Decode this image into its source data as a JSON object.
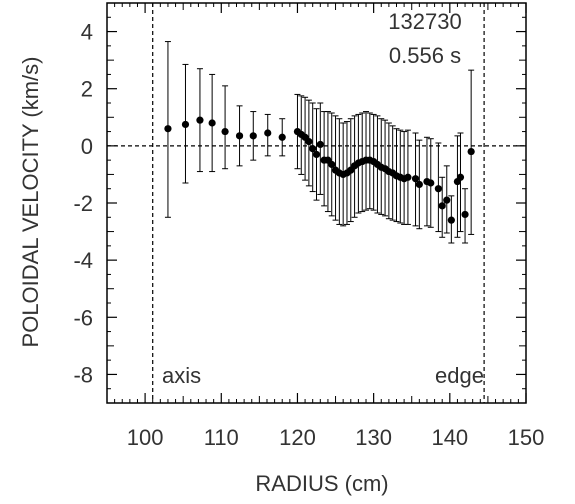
{
  "chart_data": {
    "type": "scatter",
    "title": "",
    "xlabel": "RADIUS (cm)",
    "ylabel": "POLOIDAL VELOCITY (km/s)",
    "xlim": [
      95,
      150
    ],
    "ylim": [
      -9,
      5
    ],
    "xticks": [
      100,
      110,
      120,
      130,
      140,
      150
    ],
    "yticks": [
      4,
      2,
      0,
      -2,
      -4,
      -6,
      -8
    ],
    "xtick_labels": [
      "100",
      "110",
      "120",
      "130",
      "140",
      "150"
    ],
    "ytick_labels": [
      "4",
      "2",
      "0",
      "-2",
      "-4",
      "-6",
      "-8"
    ],
    "grid": false,
    "reference_lines": {
      "horizontal_y": 0,
      "vertical_x": [
        101,
        144.5
      ],
      "style": "dashed"
    },
    "annotations": {
      "shot": "132730",
      "time": "0.556 s",
      "axis": "axis",
      "edge": "edge"
    },
    "series": [
      {
        "marker": "filled-circle",
        "color": "#000000",
        "points": [
          {
            "x": 103.0,
            "y": 0.6,
            "lo": -2.5,
            "hi": 3.65
          },
          {
            "x": 105.3,
            "y": 0.75,
            "lo": -1.3,
            "hi": 2.85
          },
          {
            "x": 107.2,
            "y": 0.9,
            "lo": -0.9,
            "hi": 2.7
          },
          {
            "x": 108.8,
            "y": 0.8,
            "lo": -0.9,
            "hi": 2.5
          },
          {
            "x": 110.5,
            "y": 0.5,
            "lo": -0.8,
            "hi": 2.1
          },
          {
            "x": 112.4,
            "y": 0.35,
            "lo": -0.7,
            "hi": 1.4
          },
          {
            "x": 114.2,
            "y": 0.35,
            "lo": -0.5,
            "hi": 1.2
          },
          {
            "x": 116.1,
            "y": 0.45,
            "lo": -0.35,
            "hi": 1.1
          },
          {
            "x": 118.0,
            "y": 0.3,
            "lo": -0.35,
            "hi": 0.95
          },
          {
            "x": 120.0,
            "y": 0.5,
            "lo": -0.8,
            "hi": 1.8
          },
          {
            "x": 120.5,
            "y": 0.4,
            "lo": -1.0,
            "hi": 1.75
          },
          {
            "x": 121.0,
            "y": 0.3,
            "lo": -1.2,
            "hi": 1.7
          },
          {
            "x": 121.5,
            "y": 0.15,
            "lo": -1.4,
            "hi": 1.6
          },
          {
            "x": 122.0,
            "y": -0.1,
            "lo": -1.6,
            "hi": 1.5
          },
          {
            "x": 122.5,
            "y": -0.3,
            "lo": -1.9,
            "hi": 1.3
          },
          {
            "x": 123.0,
            "y": 0.05,
            "lo": -1.7,
            "hi": 1.5
          },
          {
            "x": 123.5,
            "y": -0.5,
            "lo": -2.1,
            "hi": 1.2
          },
          {
            "x": 124.0,
            "y": -0.5,
            "lo": -2.3,
            "hi": 1.2
          },
          {
            "x": 124.5,
            "y": -0.65,
            "lo": -2.45,
            "hi": 1.15
          },
          {
            "x": 125.0,
            "y": -0.85,
            "lo": -2.6,
            "hi": 1.05
          },
          {
            "x": 125.5,
            "y": -0.95,
            "lo": -2.75,
            "hi": 0.95
          },
          {
            "x": 126.0,
            "y": -1.0,
            "lo": -2.8,
            "hi": 0.8
          },
          {
            "x": 126.5,
            "y": -0.95,
            "lo": -2.75,
            "hi": 0.85
          },
          {
            "x": 127.0,
            "y": -0.85,
            "lo": -2.65,
            "hi": 0.95
          },
          {
            "x": 127.5,
            "y": -0.7,
            "lo": -2.5,
            "hi": 1.05
          },
          {
            "x": 128.0,
            "y": -0.6,
            "lo": -2.35,
            "hi": 1.1
          },
          {
            "x": 128.5,
            "y": -0.55,
            "lo": -2.3,
            "hi": 1.15
          },
          {
            "x": 129.0,
            "y": -0.5,
            "lo": -2.25,
            "hi": 1.2
          },
          {
            "x": 129.5,
            "y": -0.5,
            "lo": -2.2,
            "hi": 1.15
          },
          {
            "x": 130.0,
            "y": -0.55,
            "lo": -2.25,
            "hi": 1.1
          },
          {
            "x": 130.5,
            "y": -0.65,
            "lo": -2.35,
            "hi": 1.05
          },
          {
            "x": 131.0,
            "y": -0.75,
            "lo": -2.4,
            "hi": 0.95
          },
          {
            "x": 131.5,
            "y": -0.8,
            "lo": -2.45,
            "hi": 0.9
          },
          {
            "x": 132.0,
            "y": -0.9,
            "lo": -2.55,
            "hi": 0.8
          },
          {
            "x": 132.5,
            "y": -0.95,
            "lo": -2.6,
            "hi": 0.7
          },
          {
            "x": 133.0,
            "y": -1.05,
            "lo": -2.65,
            "hi": 0.6
          },
          {
            "x": 133.5,
            "y": -1.1,
            "lo": -2.7,
            "hi": 0.55
          },
          {
            "x": 134.0,
            "y": -1.15,
            "lo": -2.75,
            "hi": 0.5
          },
          {
            "x": 134.5,
            "y": -1.1,
            "lo": -2.75,
            "hi": 0.55
          },
          {
            "x": 135.5,
            "y": -1.15,
            "lo": -2.8,
            "hi": 0.45
          },
          {
            "x": 136.0,
            "y": -1.35,
            "lo": -2.9,
            "hi": 0.2
          },
          {
            "x": 137.0,
            "y": -1.25,
            "lo": -2.8,
            "hi": 0.3
          },
          {
            "x": 137.5,
            "y": -1.3,
            "lo": -2.85,
            "hi": 0.25
          },
          {
            "x": 138.5,
            "y": -1.5,
            "lo": -3.0,
            "hi": 0.1
          },
          {
            "x": 139.0,
            "y": -2.1,
            "lo": -3.2,
            "hi": -1.1
          },
          {
            "x": 139.6,
            "y": -1.9,
            "lo": -3.05,
            "hi": -0.7
          },
          {
            "x": 140.2,
            "y": -2.6,
            "lo": -3.4,
            "hi": -1.75
          },
          {
            "x": 141.0,
            "y": -1.25,
            "lo": -3.2,
            "hi": 0.35
          },
          {
            "x": 141.4,
            "y": -1.1,
            "lo": -3.0,
            "hi": 0.45
          },
          {
            "x": 142.0,
            "y": -2.4,
            "lo": -3.4,
            "hi": -1.5
          },
          {
            "x": 142.8,
            "y": -0.2,
            "lo": -3.1,
            "hi": 2.65
          }
        ]
      }
    ]
  }
}
